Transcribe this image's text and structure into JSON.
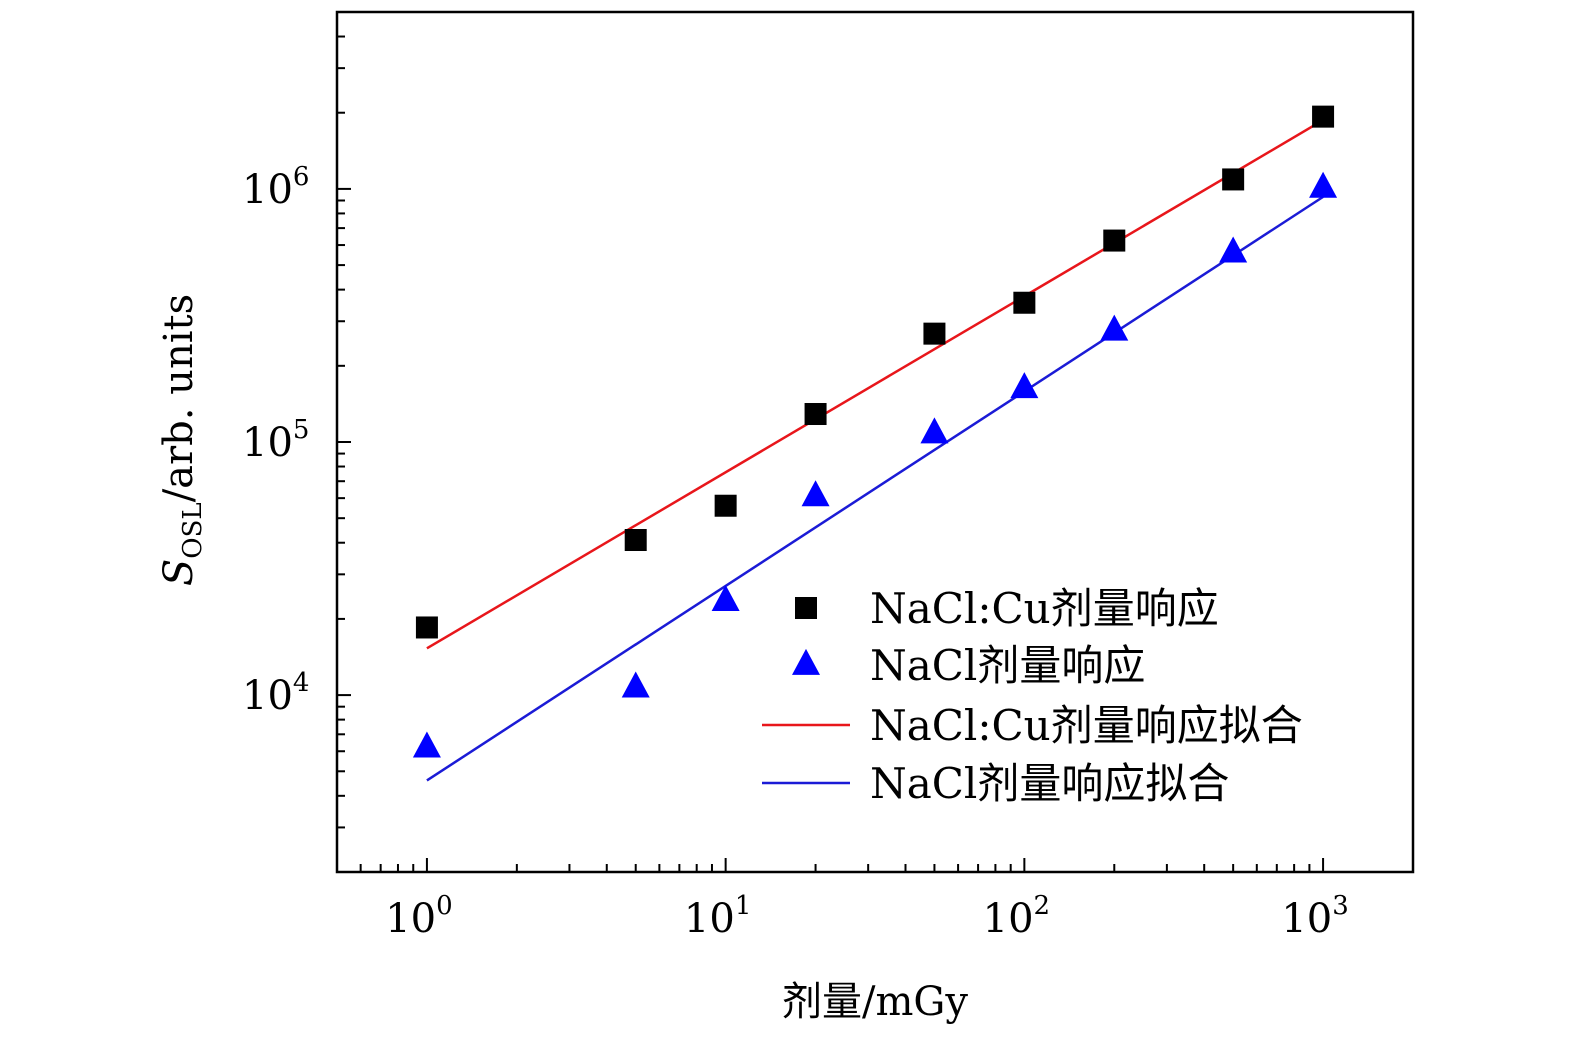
{
  "chart_data": {
    "type": "scatter",
    "title": "",
    "xlabel": "剂量/mGy",
    "ylabel": {
      "main": "S",
      "sub": "OSL",
      "rest": "/arb. units"
    },
    "x_scale": "log",
    "y_scale": "log",
    "xlim": [
      0.5,
      2000
    ],
    "ylim": [
      2000,
      5000000
    ],
    "x_ticks": [
      {
        "value": 1,
        "base": "10",
        "exp": "0"
      },
      {
        "value": 10,
        "base": "10",
        "exp": "1"
      },
      {
        "value": 100,
        "base": "10",
        "exp": "2"
      },
      {
        "value": 1000,
        "base": "10",
        "exp": "3"
      }
    ],
    "y_ticks": [
      {
        "value": 10000,
        "base": "10",
        "exp": "4"
      },
      {
        "value": 100000,
        "base": "10",
        "exp": "5"
      },
      {
        "value": 1000000,
        "base": "10",
        "exp": "6"
      }
    ],
    "grid": false,
    "legend_position": "bottom-right",
    "series": [
      {
        "name": "NaCl:Cu剂量响应",
        "kind": "points",
        "marker": "square",
        "color": "#000000",
        "x": [
          1,
          5,
          10,
          20,
          50,
          100,
          200,
          500,
          1000
        ],
        "y": [
          18500,
          41000,
          56000,
          129000,
          268000,
          355000,
          625000,
          1090000,
          1930000
        ]
      },
      {
        "name": "NaCl剂量响应",
        "kind": "points",
        "marker": "triangle",
        "color": "#0000ff",
        "x": [
          1,
          5,
          10,
          20,
          50,
          100,
          200,
          500,
          1000
        ],
        "y": [
          6200,
          10700,
          23500,
          61000,
          108000,
          163000,
          275000,
          560000,
          1010000
        ]
      },
      {
        "name": "NaCl:Cu剂量响应拟合",
        "kind": "line",
        "color": "#e8161b",
        "x": [
          1,
          1000
        ],
        "y": [
          15300,
          1870000
        ]
      },
      {
        "name": "NaCl剂量响应拟合",
        "kind": "line",
        "color": "#1b1bd6",
        "x": [
          1,
          1000
        ],
        "y": [
          4600,
          930000
        ]
      }
    ]
  }
}
